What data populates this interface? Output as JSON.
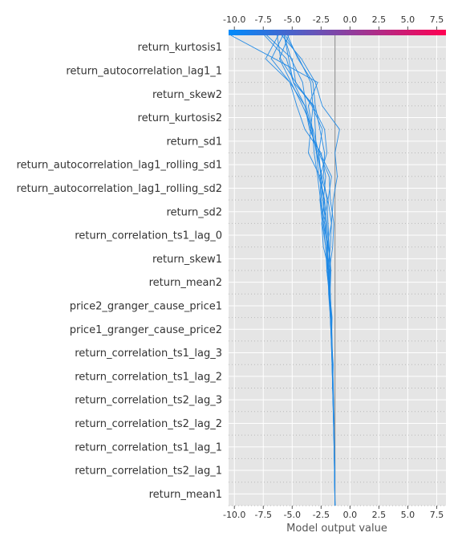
{
  "chart_data": {
    "type": "line",
    "title": "",
    "xlabel": "Model output value",
    "ylabel": "",
    "xlim": [
      -10.5,
      8.3
    ],
    "x_ticks": [
      "-10.0",
      "-7.5",
      "-5.0",
      "-2.5",
      "0.0",
      "2.5",
      "5.0",
      "7.5"
    ],
    "x_tick_values": [
      -10.0,
      -7.5,
      -5.0,
      -2.5,
      0.0,
      2.5,
      5.0,
      7.5
    ],
    "base_value": -1.3,
    "grid": true,
    "legend": "none",
    "colorbar": {
      "position": "top",
      "from_color": "#008bfb",
      "to_color": "#ff0052"
    },
    "line_color": "#1e88e5",
    "baseline_color": "#999999",
    "features": [
      "return_kurtosis1",
      "return_autocorrelation_lag1_1",
      "return_skew2",
      "return_kurtosis2",
      "return_sd1",
      "return_autocorrelation_lag1_rolling_sd1",
      "return_autocorrelation_lag1_rolling_sd2",
      "return_sd2",
      "return_correlation_ts1_lag_0",
      "return_skew1",
      "return_mean2",
      "price2_granger_cause_price1",
      "price1_granger_cause_price2",
      "return_correlation_ts1_lag_3",
      "return_correlation_ts1_lag_2",
      "return_correlation_ts2_lag_3",
      "return_correlation_ts2_lag_2",
      "return_correlation_ts1_lag_1",
      "return_correlation_ts2_lag_1",
      "return_mean1"
    ],
    "series": [
      {
        "values": [
          -1.3,
          -1.32,
          -1.35,
          -1.38,
          -1.42,
          -1.45,
          -1.5,
          -1.55,
          -1.6,
          -1.72,
          -1.65,
          -1.8,
          -1.9,
          -2.0,
          -2.3,
          -2.2,
          -2.6,
          -3.0,
          -3.2,
          -4.5,
          -5.4
        ]
      },
      {
        "values": [
          -1.3,
          -1.31,
          -1.34,
          -1.37,
          -1.4,
          -1.5,
          -1.45,
          -1.6,
          -1.55,
          -1.75,
          -1.7,
          -1.85,
          -2.0,
          -2.2,
          -2.6,
          -3.6,
          -3.4,
          -3.2,
          -3.4,
          -4.4,
          -5.6
        ]
      },
      {
        "values": [
          -1.3,
          -1.33,
          -1.36,
          -1.4,
          -1.45,
          -1.5,
          -1.55,
          -1.6,
          -1.7,
          -1.8,
          -2.0,
          -1.9,
          -2.2,
          -2.5,
          -2.4,
          -2.9,
          -3.3,
          -3.8,
          -4.1,
          -5.1,
          -5.7
        ]
      },
      {
        "values": [
          -1.3,
          -1.32,
          -1.36,
          -1.4,
          -1.45,
          -1.5,
          -1.55,
          -1.62,
          -1.7,
          -1.85,
          -1.9,
          -2.0,
          -1.6,
          -1.45,
          -1.1,
          -1.3,
          -0.9,
          -2.4,
          -3.0,
          -4.2,
          -5.9
        ]
      },
      {
        "values": [
          -1.3,
          -1.32,
          -1.35,
          -1.38,
          -1.41,
          -1.46,
          -1.52,
          -1.58,
          -1.66,
          -1.8,
          -1.75,
          -2.0,
          -2.1,
          -2.3,
          -2.1,
          -2.5,
          -3.9,
          -4.6,
          -5.2,
          -7.3,
          -6.2
        ]
      },
      {
        "values": [
          -1.3,
          -1.31,
          -1.33,
          -1.37,
          -1.42,
          -1.47,
          -1.51,
          -1.57,
          -1.63,
          -1.7,
          -2.0,
          -1.9,
          -2.3,
          -1.9,
          -1.6,
          -2.6,
          -3.5,
          -3.9,
          -5.2,
          -6.8,
          -5.8
        ]
      },
      {
        "values": [
          -1.3,
          -1.32,
          -1.35,
          -1.39,
          -1.43,
          -1.48,
          -1.53,
          -1.6,
          -1.68,
          -1.78,
          -1.85,
          -1.95,
          -2.1,
          -2.35,
          -2.6,
          -2.0,
          -2.2,
          -3.2,
          -4.7,
          -6.0,
          -6.3
        ]
      },
      {
        "values": [
          -1.3,
          -1.31,
          -1.34,
          -1.38,
          -1.42,
          -1.47,
          -1.52,
          -1.58,
          -1.64,
          -1.72,
          -1.8,
          -2.3,
          -2.45,
          -2.2,
          -2.7,
          -2.9,
          -3.0,
          -3.1,
          -4.9,
          -5.3,
          -5.7
        ]
      },
      {
        "values": [
          -1.3,
          -1.33,
          -1.36,
          -1.39,
          -1.44,
          -1.49,
          -1.54,
          -1.6,
          -1.69,
          -1.76,
          -2.0,
          -2.1,
          -2.4,
          -2.6,
          -2.5,
          -2.8,
          -3.4,
          -3.9,
          -4.9,
          -5.5,
          -7.4
        ]
      },
      {
        "values": [
          -1.3,
          -1.32,
          -1.35,
          -1.38,
          -1.43,
          -1.48,
          -1.53,
          -1.59,
          -1.65,
          -1.74,
          -1.9,
          -1.7,
          -1.6,
          -1.9,
          -2.5,
          -2.7,
          -2.4,
          -3.3,
          -4.7,
          -5.0,
          -7.2
        ]
      },
      {
        "values": [
          -1.3,
          -1.31,
          -1.33,
          -1.36,
          -1.4,
          -1.44,
          -1.5,
          -1.56,
          -1.62,
          -1.7,
          -1.78,
          -1.5,
          -1.4,
          -1.7,
          -1.8,
          -2.7,
          -3.2,
          -4.1,
          -5.1,
          -6.1,
          -5.3
        ]
      },
      {
        "values": [
          -1.3,
          -1.32,
          -1.35,
          -1.39,
          -1.44,
          -1.49,
          -1.55,
          -1.62,
          -1.7,
          -1.8,
          -1.92,
          -2.1,
          -2.3,
          -2.55,
          -2.8,
          -3.1,
          -3.25,
          -3.6,
          -2.8,
          -6.5,
          -10.3
        ]
      }
    ]
  }
}
